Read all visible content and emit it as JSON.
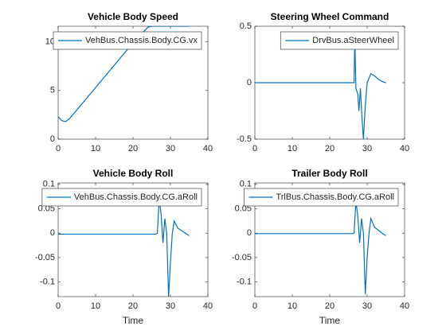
{
  "chart_data": [
    {
      "type": "line",
      "title": "Vehicle Body Speed",
      "xlim": [
        0,
        40
      ],
      "xticks": [
        0,
        10,
        20,
        30,
        40
      ],
      "ylim": [
        0,
        11.6
      ],
      "yticks": [
        0,
        5,
        10
      ],
      "legend": "northeast",
      "series": [
        {
          "name": "VehBus.Chassis.Body.CG.vx",
          "color": "#0072bd",
          "x": [
            0,
            1,
            2,
            3,
            5,
            10,
            15,
            20,
            24,
            25,
            30,
            35
          ],
          "values": [
            2.3,
            1.9,
            1.8,
            2.1,
            3.0,
            5.3,
            7.6,
            9.9,
            11.5,
            11.6,
            11.6,
            11.6
          ]
        }
      ]
    },
    {
      "type": "line",
      "title": "Steering Wheel Command",
      "xlim": [
        0,
        40
      ],
      "xticks": [
        0,
        10,
        20,
        30,
        40
      ],
      "ylim": [
        -0.5,
        0.5
      ],
      "yticks": [
        -0.5,
        0,
        0.5
      ],
      "legend": "northeast",
      "series": [
        {
          "name": "DrvBus.aSteerWheel",
          "color": "#0072bd",
          "x": [
            0,
            26,
            26.5,
            26.7,
            27,
            27.5,
            27.8,
            28.2,
            28.6,
            29,
            29.5,
            30,
            31,
            32,
            33,
            34,
            35
          ],
          "values": [
            0,
            0,
            0,
            0.38,
            -0.05,
            -0.1,
            -0.25,
            -0.05,
            -0.3,
            -0.5,
            -0.2,
            0.0,
            0.08,
            0.06,
            0.03,
            0.01,
            0
          ]
        }
      ]
    },
    {
      "type": "line",
      "title": "Vehicle Body Roll",
      "xlabel": "Time",
      "xlim": [
        0,
        40
      ],
      "xticks": [
        0,
        10,
        20,
        30,
        40
      ],
      "ylim": [
        -0.13,
        0.103
      ],
      "yticks": [
        -0.1,
        -0.05,
        0,
        0.05,
        0.1
      ],
      "legend": "northeast",
      "series": [
        {
          "name": "VehBus.Chassis.Body.CG.aRoll",
          "color": "#0072bd",
          "x": [
            0,
            10,
            20,
            26,
            26.5,
            27,
            27.5,
            28,
            28.5,
            29,
            29.5,
            30,
            30.5,
            31,
            32,
            33,
            34,
            35
          ],
          "values": [
            -0.002,
            -0.002,
            -0.002,
            -0.002,
            0.0,
            0.07,
            0.04,
            -0.02,
            0.03,
            0.0,
            -0.13,
            -0.06,
            0.0,
            0.025,
            0.01,
            0.005,
            0.0,
            -0.005
          ]
        }
      ]
    },
    {
      "type": "line",
      "title": "Trailer Body Roll",
      "xlabel": "Time",
      "xlim": [
        0,
        40
      ],
      "xticks": [
        0,
        10,
        20,
        30,
        40
      ],
      "ylim": [
        -0.13,
        0.103
      ],
      "yticks": [
        -0.1,
        -0.05,
        0,
        0.05,
        0.1
      ],
      "legend": "northeast",
      "series": [
        {
          "name": "TrlBus.Chassis.Body.CG.aRoll",
          "color": "#0072bd",
          "x": [
            0,
            10,
            20,
            26,
            26.5,
            27,
            27.5,
            28,
            28.5,
            29,
            29.5,
            30,
            30.5,
            31,
            32,
            33,
            34,
            35
          ],
          "values": [
            -0.001,
            -0.001,
            -0.001,
            -0.001,
            0.0,
            0.065,
            0.035,
            -0.02,
            0.03,
            0.0,
            -0.125,
            -0.05,
            0.0,
            0.03,
            0.012,
            0.006,
            0.0,
            -0.005
          ]
        }
      ]
    }
  ]
}
